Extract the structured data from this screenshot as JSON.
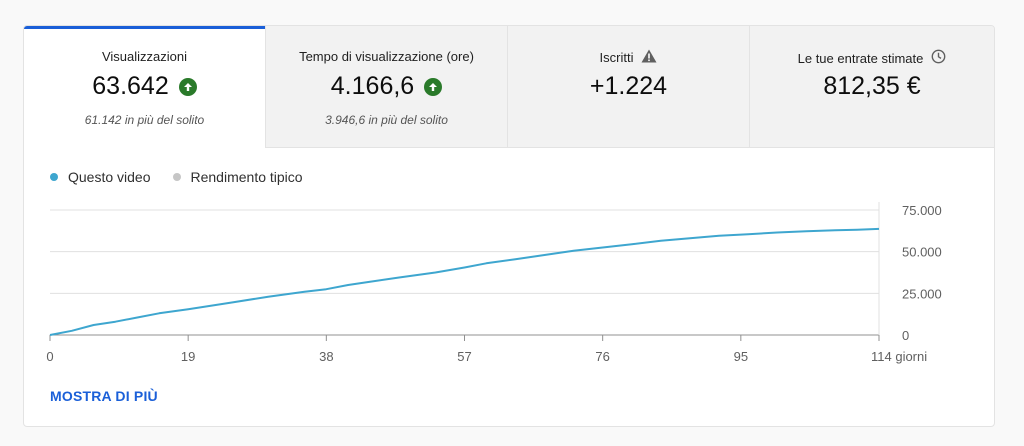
{
  "tabs": [
    {
      "title": "Visualizzazioni",
      "value": "63.642",
      "sub": "61.142 in più del solito",
      "icon": "arrow-up-icon"
    },
    {
      "title": "Tempo di visualizzazione (ore)",
      "value": "4.166,6",
      "sub": "3.946,6 in più del solito",
      "icon": "arrow-up-icon"
    },
    {
      "title": "Iscritti",
      "value": "+1.224",
      "sub": "",
      "icon": "warning-icon"
    },
    {
      "title": "Le tue entrate stimate",
      "value": "812,35 €",
      "sub": "",
      "icon": "clock-icon"
    }
  ],
  "colors": {
    "accent": "#1a5fd8",
    "series": "#3ea6cf",
    "typical": "#c6c6c6",
    "positive": "#2a7a2a"
  },
  "legend": [
    {
      "label": "Questo video",
      "color": "#3ea6cf"
    },
    {
      "label": "Rendimento tipico",
      "color": "#c6c6c6"
    }
  ],
  "more_link": "MOSTRA DI PIÙ",
  "chart_data": {
    "type": "line",
    "x_ticks": [
      0,
      19,
      38,
      57,
      76,
      95,
      114
    ],
    "x_tick_labels": [
      "0",
      "19",
      "38",
      "57",
      "76",
      "95",
      "114 giorni"
    ],
    "y_ticks": [
      0,
      25000,
      50000,
      75000
    ],
    "y_tick_labels": [
      "0",
      "25.000",
      "50.000",
      "75.000"
    ],
    "xlim": [
      0,
      114
    ],
    "ylim": [
      0,
      75000
    ],
    "grid": true,
    "series": [
      {
        "name": "Questo video",
        "color": "#3ea6cf",
        "x": [
          0,
          3,
          6,
          9,
          12,
          15,
          19,
          25,
          30,
          35,
          38,
          41,
          44,
          48,
          53,
          57,
          60,
          64,
          68,
          72,
          76,
          80,
          84,
          88,
          92,
          96,
          100,
          104,
          108,
          111,
          114
        ],
        "y": [
          0,
          2500,
          6000,
          8000,
          10500,
          13000,
          15500,
          19500,
          23000,
          26000,
          27500,
          30000,
          32000,
          34500,
          37500,
          40500,
          43000,
          45500,
          48000,
          50500,
          52500,
          54500,
          56500,
          58000,
          59500,
          60500,
          61500,
          62300,
          62800,
          63200,
          63642
        ]
      }
    ]
  }
}
